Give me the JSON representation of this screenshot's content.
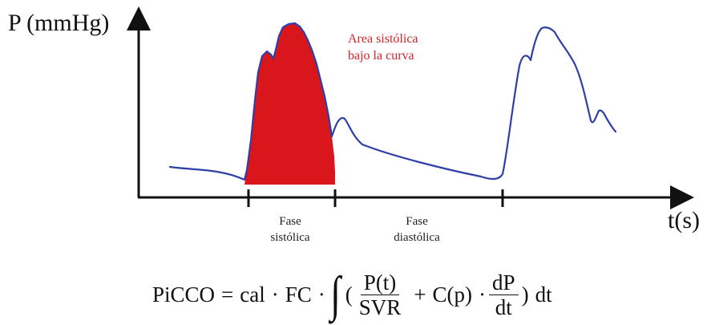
{
  "y_axis_label": "P (mmHg)",
  "x_axis_label": "t(s)",
  "area_annotation": {
    "line1": "Area sistólica",
    "line2": "bajo la curva"
  },
  "phases": [
    {
      "line1": "Fase",
      "line2": "sistólica"
    },
    {
      "line1": "Fase",
      "line2": "diastólica"
    }
  ],
  "formula": {
    "lhs": "PiCCO",
    "equals": "=",
    "cal": "cal",
    "dot": "·",
    "fc": "FC",
    "integral": "∫",
    "open_paren": "(",
    "frac1_num": "P(t)",
    "frac1_den": "SVR",
    "plus": "+",
    "cp": "C(p)",
    "frac2_num": "dP",
    "frac2_den": "dt",
    "close_paren": ")",
    "dt": "dt"
  },
  "colors": {
    "curve": "#2f3fa8",
    "area_fill": "#d9161c",
    "annotation": "#d2232a",
    "axes": "#111111"
  }
}
